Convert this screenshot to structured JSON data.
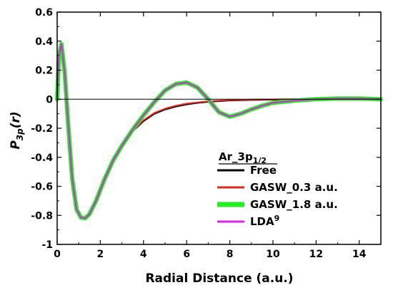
{
  "chart_data": {
    "type": "line",
    "title": "",
    "xlabel": "Radial Distance (a.u.)",
    "ylabel": {
      "main": "P",
      "sub": "3p",
      "tail": "(r)"
    },
    "xlim": [
      0,
      15
    ],
    "ylim": [
      -1,
      0.6
    ],
    "xticks": [
      0,
      2,
      4,
      6,
      8,
      10,
      12,
      14
    ],
    "yticks": [
      0.6,
      0.4,
      0.2,
      0,
      -0.2,
      -0.4,
      -0.6,
      -0.8,
      -1
    ],
    "grid": false,
    "zero_line": true,
    "legend": {
      "placement": "bottom-right",
      "title_main": "Ar_3p",
      "title_sub": "1/2"
    },
    "series": [
      {
        "name": "Free",
        "color": "#000000",
        "x": [
          0,
          0.08,
          0.2,
          0.35,
          0.5,
          0.7,
          0.9,
          1.1,
          1.3,
          1.5,
          1.8,
          2.2,
          2.6,
          3.0,
          3.5,
          4.0,
          4.5,
          5.0,
          5.5,
          6.0,
          6.5,
          7.0,
          7.5,
          8.0,
          9.0,
          10.0,
          12.0,
          15.0
        ],
        "y": [
          0,
          0.3,
          0.38,
          0.18,
          -0.15,
          -0.55,
          -0.76,
          -0.815,
          -0.82,
          -0.79,
          -0.7,
          -0.55,
          -0.42,
          -0.32,
          -0.22,
          -0.15,
          -0.1,
          -0.07,
          -0.05,
          -0.035,
          -0.025,
          -0.017,
          -0.012,
          -0.008,
          -0.004,
          -0.002,
          0,
          0
        ]
      },
      {
        "name": "GASW_0.3 a.u.",
        "color": "#e0261e",
        "x": [
          0,
          0.08,
          0.2,
          0.35,
          0.5,
          0.7,
          0.9,
          1.1,
          1.3,
          1.5,
          1.8,
          2.2,
          2.6,
          3.0,
          3.5,
          4.0,
          4.5,
          5.0,
          5.5,
          6.0,
          6.5,
          7.0,
          7.5,
          8.0,
          9.0,
          10.0,
          12.0,
          15.0
        ],
        "y": [
          0,
          0.3,
          0.38,
          0.18,
          -0.15,
          -0.55,
          -0.76,
          -0.815,
          -0.82,
          -0.79,
          -0.7,
          -0.55,
          -0.42,
          -0.32,
          -0.22,
          -0.145,
          -0.095,
          -0.065,
          -0.045,
          -0.03,
          -0.022,
          -0.015,
          -0.01,
          -0.006,
          -0.003,
          -0.001,
          0,
          0
        ]
      },
      {
        "name": "GASW_1.8 a.u.",
        "color": "#22ee22",
        "x": [
          0,
          0.08,
          0.2,
          0.35,
          0.5,
          0.7,
          0.9,
          1.1,
          1.3,
          1.5,
          1.8,
          2.2,
          2.6,
          3.0,
          3.5,
          4.0,
          4.5,
          5.0,
          5.5,
          6.0,
          6.5,
          7.0,
          7.5,
          8.0,
          8.5,
          9.0,
          9.5,
          10.0,
          11.0,
          12.0,
          13.0,
          14.0,
          15.0
        ],
        "y": [
          0,
          0.3,
          0.38,
          0.18,
          -0.15,
          -0.55,
          -0.76,
          -0.815,
          -0.82,
          -0.79,
          -0.7,
          -0.55,
          -0.42,
          -0.32,
          -0.21,
          -0.11,
          -0.02,
          0.06,
          0.105,
          0.115,
          0.08,
          0.0,
          -0.09,
          -0.12,
          -0.1,
          -0.07,
          -0.045,
          -0.025,
          -0.01,
          0.0,
          0.005,
          0.005,
          0.0
        ]
      },
      {
        "name": "LDA",
        "name_sup": "9",
        "color": "#e020e8",
        "x": [
          0,
          0.08,
          0.2,
          0.35,
          0.5,
          0.7,
          0.9,
          1.1,
          1.3,
          1.5,
          1.8,
          2.2,
          2.6,
          3.0,
          3.5,
          4.0,
          4.5,
          5.0,
          5.5,
          6.0,
          6.5,
          7.0,
          7.5,
          8.0,
          8.5,
          9.0,
          9.5,
          10.0,
          11.0,
          12.0,
          13.0,
          14.0,
          15.0
        ],
        "y": [
          0,
          0.3,
          0.38,
          0.18,
          -0.15,
          -0.55,
          -0.76,
          -0.815,
          -0.82,
          -0.79,
          -0.7,
          -0.55,
          -0.42,
          -0.32,
          -0.21,
          -0.11,
          -0.02,
          0.06,
          0.105,
          0.115,
          0.08,
          0.0,
          -0.09,
          -0.12,
          -0.1,
          -0.07,
          -0.045,
          -0.025,
          -0.01,
          0.0,
          0.005,
          0.005,
          0.0
        ]
      }
    ]
  }
}
